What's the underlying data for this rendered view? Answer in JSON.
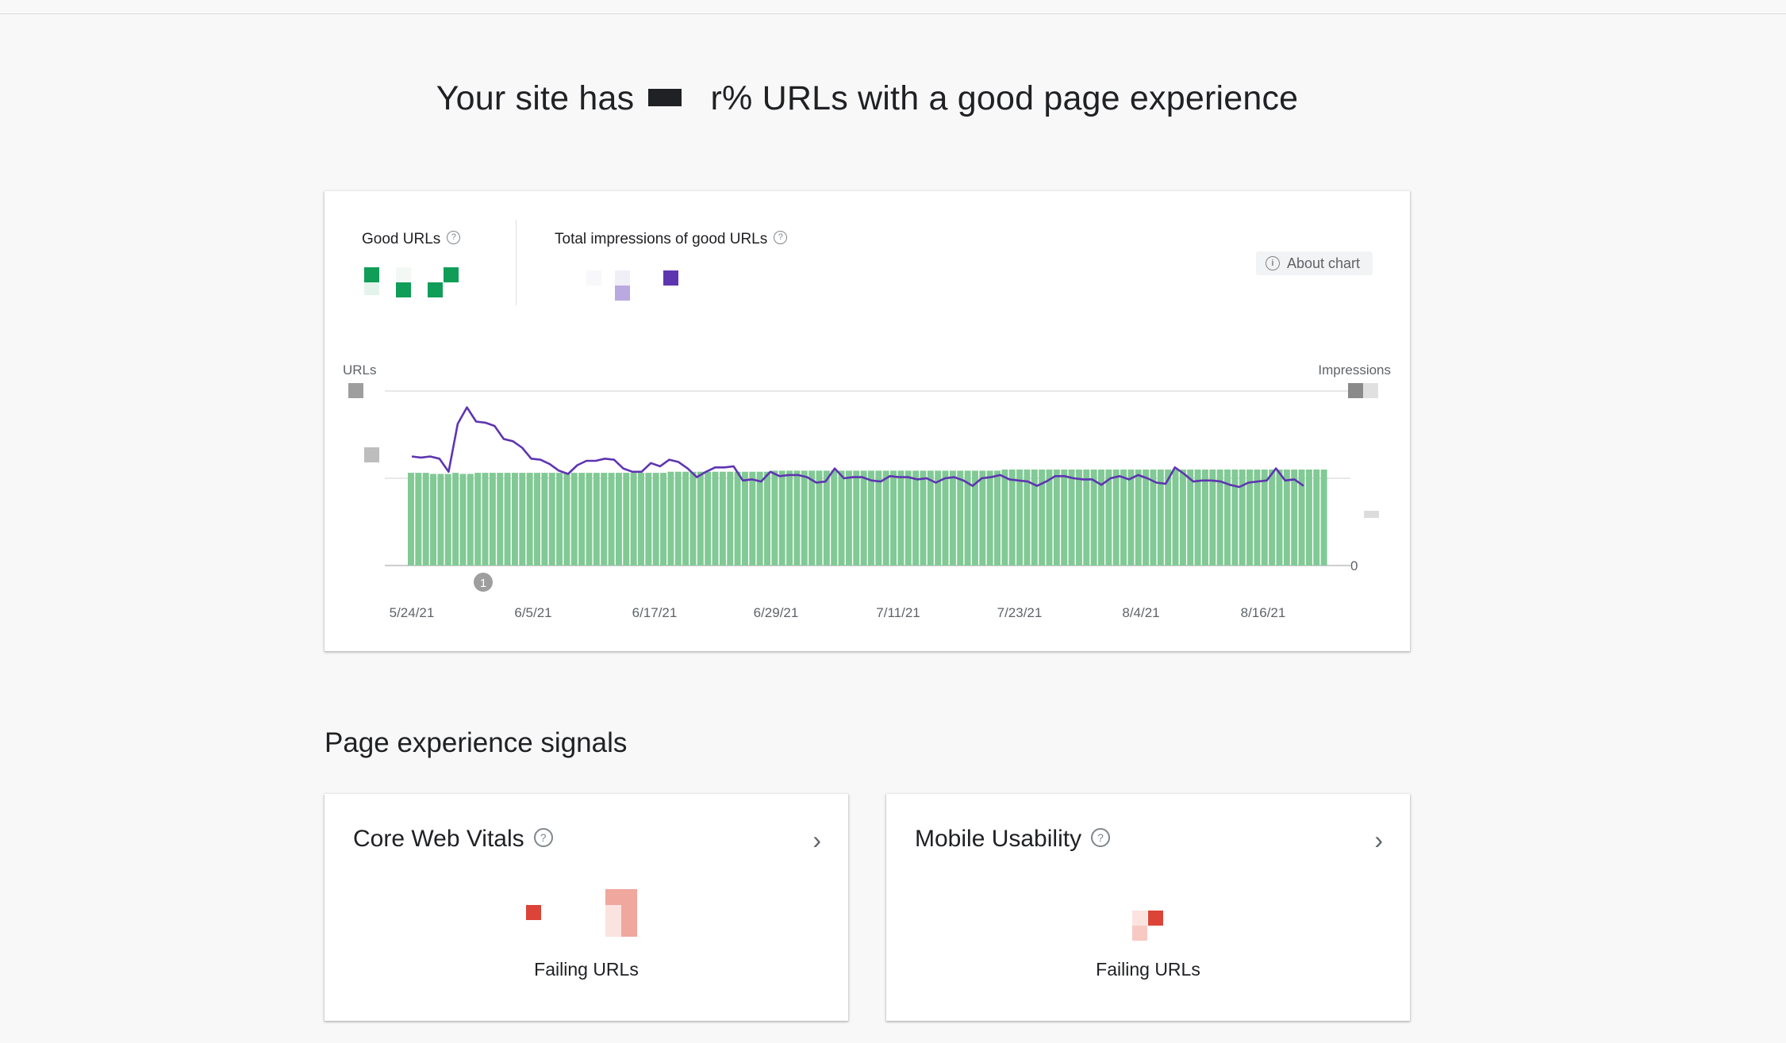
{
  "headline": {
    "prefix": "Your site has",
    "suffix": "% URLs with a good page experience",
    "partial_glyph": "r"
  },
  "summary": {
    "good_urls_label": "Good URLs",
    "impressions_label": "Total impressions of good URLs",
    "about_chart_label": "About chart",
    "good_color": "#0f9d58",
    "impressions_color": "#5e35b1"
  },
  "chart_data": {
    "type": "bar",
    "left_axis_label": "URLs",
    "right_axis_label": "Impressions",
    "right_axis_zero": "0",
    "x_tick_labels": [
      "5/24/21",
      "6/5/21",
      "6/17/21",
      "6/29/21",
      "7/11/21",
      "7/23/21",
      "8/4/21",
      "8/16/21"
    ],
    "annotation_label": "1",
    "bar_color": "#81c995",
    "line_color": "#5e35b1",
    "series": [
      {
        "kind": "bar",
        "values": [
          85,
          85,
          85,
          84,
          84,
          84,
          85,
          84,
          84,
          85,
          85,
          85,
          85,
          85,
          85,
          85,
          85,
          85,
          85,
          85,
          85,
          85,
          85,
          85,
          85,
          85,
          85,
          85,
          85,
          85,
          85,
          85,
          85,
          85,
          85,
          86,
          86,
          86,
          86,
          86,
          86,
          86,
          86,
          86,
          86,
          86,
          86,
          86,
          86,
          87,
          87,
          87,
          87,
          87,
          87,
          87,
          87,
          87,
          87,
          87,
          87,
          87,
          87,
          87,
          87,
          87,
          87,
          87,
          87,
          87,
          87,
          87,
          87,
          87,
          87,
          87,
          87,
          87,
          87,
          87,
          88,
          88,
          88,
          88,
          88,
          88,
          88,
          88,
          88,
          88,
          88,
          88,
          88,
          88,
          88,
          88,
          88,
          88,
          88,
          88,
          88,
          88,
          88,
          88,
          88,
          88,
          88,
          88,
          88,
          88,
          88,
          88,
          88,
          88,
          88,
          88,
          88,
          88,
          88,
          88,
          88,
          88,
          88,
          88
        ]
      },
      {
        "kind": "line",
        "values": [
          100,
          99,
          100,
          98,
          86,
          130,
          145,
          132,
          131,
          128,
          116,
          114,
          108,
          98,
          97,
          93,
          87,
          84,
          92,
          96,
          96,
          98,
          97,
          89,
          86,
          86,
          94,
          91,
          97,
          95,
          89,
          81,
          86,
          90,
          90,
          91,
          78,
          79,
          77,
          86,
          82,
          83,
          83,
          81,
          76,
          77,
          89,
          80,
          81,
          81,
          78,
          77,
          82,
          81,
          81,
          79,
          80,
          76,
          80,
          81,
          78,
          73,
          80,
          81,
          83,
          79,
          78,
          77,
          73,
          77,
          82,
          82,
          80,
          79,
          79,
          74,
          80,
          82,
          79,
          83,
          80,
          76,
          75,
          90,
          84,
          77,
          78,
          78,
          77,
          74,
          72,
          76,
          77,
          78,
          89,
          78,
          79,
          73
        ]
      }
    ]
  },
  "signals": {
    "section_title": "Page experience signals",
    "cards": [
      {
        "title": "Core Web Vitals",
        "failing_label": "Failing URLs"
      },
      {
        "title": "Mobile Usability",
        "failing_label": "Failing URLs"
      }
    ]
  }
}
